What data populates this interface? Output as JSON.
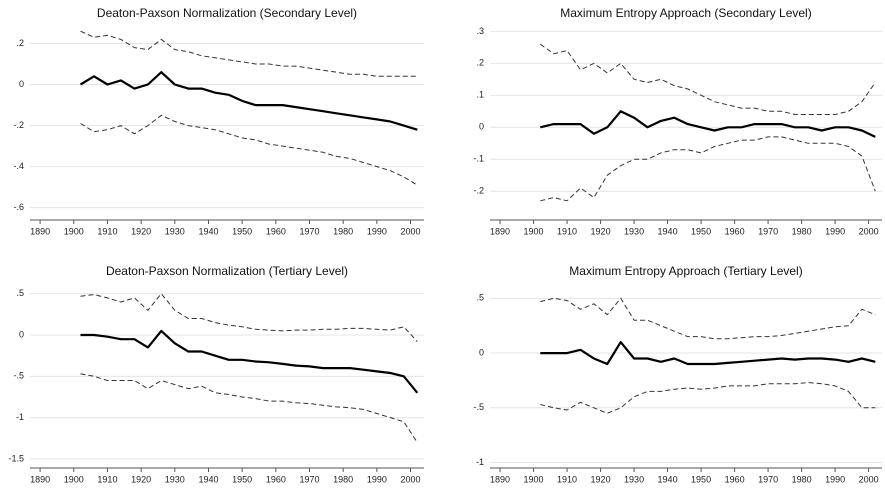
{
  "chart_data": [
    {
      "type": "line",
      "title": "Deaton-Paxson Normalization (Secondary Level)",
      "x": [
        1902,
        1906,
        1910,
        1914,
        1918,
        1922,
        1926,
        1930,
        1934,
        1938,
        1942,
        1946,
        1950,
        1954,
        1958,
        1962,
        1966,
        1970,
        1974,
        1978,
        1982,
        1986,
        1990,
        1994,
        1998,
        2002
      ],
      "xlim": [
        1887,
        2004
      ],
      "xticks": [
        1890,
        1900,
        1910,
        1920,
        1930,
        1940,
        1950,
        1960,
        1970,
        1980,
        1990,
        2000
      ],
      "ylim": [
        -0.66,
        0.29
      ],
      "yticks": [
        {
          "value": 0.2,
          "label": ".2"
        },
        0,
        {
          "value": -0.2,
          "label": "-.2"
        },
        {
          "value": -0.4,
          "label": "-.4"
        },
        {
          "value": -0.6,
          "label": "-.6"
        }
      ],
      "grid": true,
      "series": [
        {
          "color": "#000000",
          "dashed": false,
          "values": [
            0,
            0.04,
            0,
            0.02,
            -0.02,
            0,
            0.06,
            0,
            -0.02,
            -0.02,
            -0.04,
            -0.05,
            -0.08,
            -0.1,
            -0.1,
            -0.1,
            -0.11,
            -0.12,
            -0.13,
            -0.14,
            -0.15,
            -0.16,
            -0.17,
            -0.18,
            -0.2,
            -0.22
          ]
        },
        {
          "color": "#333333",
          "dashed": true,
          "values": [
            0.26,
            0.23,
            0.24,
            0.22,
            0.18,
            0.17,
            0.22,
            0.17,
            0.16,
            0.14,
            0.13,
            0.12,
            0.11,
            0.1,
            0.1,
            0.09,
            0.09,
            0.08,
            0.07,
            0.06,
            0.05,
            0.05,
            0.04,
            0.04,
            0.04,
            0.04
          ]
        },
        {
          "color": "#333333",
          "dashed": true,
          "values": [
            -0.19,
            -0.23,
            -0.22,
            -0.2,
            -0.24,
            -0.2,
            -0.15,
            -0.18,
            -0.2,
            -0.21,
            -0.22,
            -0.24,
            -0.26,
            -0.27,
            -0.29,
            -0.3,
            -0.31,
            -0.32,
            -0.33,
            -0.35,
            -0.36,
            -0.38,
            -0.4,
            -0.42,
            -0.45,
            -0.49
          ]
        }
      ]
    },
    {
      "type": "line",
      "title": "Maximum Entropy Approach (Secondary Level)",
      "x": [
        1902,
        1906,
        1910,
        1914,
        1918,
        1922,
        1926,
        1930,
        1934,
        1938,
        1942,
        1946,
        1950,
        1954,
        1958,
        1962,
        1966,
        1970,
        1974,
        1978,
        1982,
        1986,
        1990,
        1994,
        1998,
        2002
      ],
      "xlim": [
        1887,
        2004
      ],
      "xticks": [
        1890,
        1900,
        1910,
        1920,
        1930,
        1940,
        1950,
        1960,
        1970,
        1980,
        1990,
        2000
      ],
      "ylim": [
        -0.29,
        0.32
      ],
      "yticks": [
        {
          "value": 0.3,
          "label": ".3"
        },
        {
          "value": 0.2,
          "label": ".2"
        },
        {
          "value": 0.1,
          "label": ".1"
        },
        0,
        {
          "value": -0.1,
          "label": "-.1"
        },
        {
          "value": -0.2,
          "label": "-.2"
        }
      ],
      "grid": true,
      "series": [
        {
          "color": "#000000",
          "dashed": false,
          "values": [
            0,
            0.01,
            0.01,
            0.01,
            -0.02,
            0,
            0.05,
            0.03,
            0,
            0.02,
            0.03,
            0.01,
            0,
            -0.01,
            0,
            0,
            0.01,
            0.01,
            0.01,
            0,
            0,
            -0.01,
            0,
            0,
            -0.01,
            -0.03
          ]
        },
        {
          "color": "#333333",
          "dashed": true,
          "values": [
            0.26,
            0.23,
            0.24,
            0.18,
            0.2,
            0.17,
            0.2,
            0.15,
            0.14,
            0.15,
            0.13,
            0.12,
            0.1,
            0.08,
            0.07,
            0.06,
            0.06,
            0.05,
            0.05,
            0.04,
            0.04,
            0.04,
            0.04,
            0.05,
            0.08,
            0.14
          ]
        },
        {
          "color": "#333333",
          "dashed": true,
          "values": [
            -0.23,
            -0.22,
            -0.23,
            -0.19,
            -0.22,
            -0.15,
            -0.12,
            -0.1,
            -0.1,
            -0.08,
            -0.07,
            -0.07,
            -0.08,
            -0.06,
            -0.05,
            -0.04,
            -0.04,
            -0.03,
            -0.03,
            -0.04,
            -0.05,
            -0.05,
            -0.05,
            -0.06,
            -0.09,
            -0.2
          ]
        }
      ]
    },
    {
      "type": "line",
      "title": "Deaton-Paxson Normalization (Tertiary Level)",
      "x": [
        1902,
        1906,
        1910,
        1914,
        1918,
        1922,
        1926,
        1930,
        1934,
        1938,
        1942,
        1946,
        1950,
        1954,
        1958,
        1962,
        1966,
        1970,
        1974,
        1978,
        1982,
        1986,
        1990,
        1994,
        1998,
        2002
      ],
      "xlim": [
        1887,
        2004
      ],
      "xticks": [
        1890,
        1900,
        1910,
        1920,
        1930,
        1940,
        1950,
        1960,
        1970,
        1980,
        1990,
        2000
      ],
      "ylim": [
        -1.61,
        0.63
      ],
      "yticks": [
        {
          "value": 0.5,
          "label": ".5"
        },
        0,
        {
          "value": -0.5,
          "label": "-.5"
        },
        -1,
        -1.5
      ],
      "grid": true,
      "series": [
        {
          "color": "#000000",
          "dashed": false,
          "values": [
            0,
            0,
            -0.02,
            -0.05,
            -0.05,
            -0.15,
            0.05,
            -0.1,
            -0.2,
            -0.2,
            -0.25,
            -0.3,
            -0.3,
            -0.32,
            -0.33,
            -0.35,
            -0.37,
            -0.38,
            -0.4,
            -0.4,
            -0.4,
            -0.42,
            -0.44,
            -0.46,
            -0.5,
            -0.7
          ]
        },
        {
          "color": "#333333",
          "dashed": true,
          "values": [
            0.47,
            0.49,
            0.45,
            0.4,
            0.45,
            0.3,
            0.5,
            0.3,
            0.2,
            0.2,
            0.15,
            0.12,
            0.1,
            0.07,
            0.06,
            0.05,
            0.06,
            0.06,
            0.07,
            0.07,
            0.08,
            0.08,
            0.07,
            0.06,
            0.1,
            -0.08
          ]
        },
        {
          "color": "#333333",
          "dashed": true,
          "values": [
            -0.47,
            -0.5,
            -0.55,
            -0.55,
            -0.55,
            -0.65,
            -0.55,
            -0.6,
            -0.65,
            -0.62,
            -0.7,
            -0.72,
            -0.75,
            -0.77,
            -0.8,
            -0.8,
            -0.82,
            -0.83,
            -0.85,
            -0.87,
            -0.88,
            -0.9,
            -0.95,
            -1.0,
            -1.05,
            -1.3
          ]
        }
      ]
    },
    {
      "type": "line",
      "title": "Maximum Entropy Approach (Tertiary Level)",
      "x": [
        1902,
        1906,
        1910,
        1914,
        1918,
        1922,
        1926,
        1930,
        1934,
        1938,
        1942,
        1946,
        1950,
        1954,
        1958,
        1962,
        1966,
        1970,
        1974,
        1978,
        1982,
        1986,
        1990,
        1994,
        1998,
        2002
      ],
      "xlim": [
        1887,
        2004
      ],
      "xticks": [
        1890,
        1900,
        1910,
        1920,
        1930,
        1940,
        1950,
        1960,
        1970,
        1980,
        1990,
        2000
      ],
      "ylim": [
        -1.05,
        0.64
      ],
      "yticks": [
        {
          "value": 0.5,
          "label": ".5"
        },
        0,
        {
          "value": -0.5,
          "label": "-.5"
        },
        -1
      ],
      "grid": true,
      "series": [
        {
          "color": "#000000",
          "dashed": false,
          "values": [
            0,
            0,
            0,
            0.03,
            -0.05,
            -0.1,
            0.1,
            -0.05,
            -0.05,
            -0.08,
            -0.05,
            -0.1,
            -0.1,
            -0.1,
            -0.09,
            -0.08,
            -0.07,
            -0.06,
            -0.05,
            -0.06,
            -0.05,
            -0.05,
            -0.06,
            -0.08,
            -0.05,
            -0.08
          ]
        },
        {
          "color": "#333333",
          "dashed": true,
          "values": [
            0.47,
            0.5,
            0.48,
            0.4,
            0.45,
            0.35,
            0.5,
            0.3,
            0.3,
            0.25,
            0.2,
            0.15,
            0.15,
            0.13,
            0.13,
            0.14,
            0.15,
            0.15,
            0.16,
            0.18,
            0.2,
            0.22,
            0.24,
            0.25,
            0.4,
            0.35
          ]
        },
        {
          "color": "#333333",
          "dashed": true,
          "values": [
            -0.47,
            -0.5,
            -0.52,
            -0.45,
            -0.5,
            -0.55,
            -0.5,
            -0.4,
            -0.35,
            -0.35,
            -0.33,
            -0.32,
            -0.33,
            -0.32,
            -0.3,
            -0.3,
            -0.3,
            -0.28,
            -0.28,
            -0.28,
            -0.27,
            -0.28,
            -0.3,
            -0.35,
            -0.5,
            -0.5
          ]
        }
      ]
    }
  ]
}
